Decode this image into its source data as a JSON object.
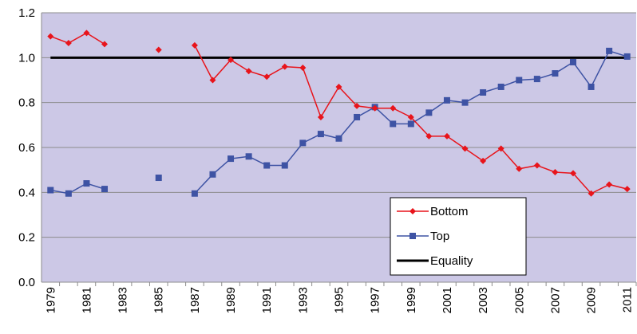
{
  "chart_data": {
    "type": "line",
    "categories": [
      "1979",
      null,
      "1981",
      null,
      "1983",
      null,
      "1985",
      null,
      "1987",
      null,
      "1989",
      null,
      "1991",
      null,
      "1993",
      null,
      "1995",
      null,
      "1997",
      null,
      "1999",
      null,
      "2001",
      null,
      "2003",
      null,
      "2005",
      null,
      "2007",
      null,
      "2009",
      null,
      "2011"
    ],
    "series": [
      {
        "name": "Bottom",
        "color": "#e8141b",
        "marker": "diamond",
        "values": [
          1.095,
          1.065,
          1.11,
          1.06,
          null,
          null,
          1.035,
          null,
          1.055,
          0.9,
          0.99,
          0.94,
          0.915,
          0.96,
          0.955,
          0.735,
          0.87,
          0.785,
          0.775,
          0.775,
          0.735,
          0.65,
          0.65,
          0.595,
          0.54,
          0.595,
          0.505,
          0.52,
          0.49,
          0.485,
          0.395,
          0.435,
          0.415
        ]
      },
      {
        "name": "Top",
        "color": "#3e53a4",
        "marker": "square",
        "values": [
          0.41,
          0.395,
          0.44,
          0.415,
          null,
          null,
          0.465,
          null,
          0.395,
          0.48,
          0.55,
          0.56,
          0.52,
          0.52,
          0.62,
          0.66,
          0.64,
          0.735,
          0.78,
          0.705,
          0.705,
          0.755,
          0.81,
          0.8,
          0.845,
          0.87,
          0.9,
          0.905,
          0.93,
          0.98,
          0.87,
          1.03,
          1.005
        ]
      },
      {
        "name": "Equality",
        "color": "#000000",
        "values": [
          1,
          1,
          1,
          1,
          1,
          1,
          1,
          1,
          1,
          1,
          1,
          1,
          1,
          1,
          1,
          1,
          1,
          1,
          1,
          1,
          1,
          1,
          1,
          1,
          1,
          1,
          1,
          1,
          1,
          1,
          1,
          1,
          1
        ]
      }
    ],
    "ylim": [
      0,
      1.2
    ],
    "yticks": [
      {
        "value": 0,
        "label": "0.0"
      },
      0.2,
      0.4,
      0.6,
      0.8,
      {
        "value": 1,
        "label": "1.0"
      },
      1.2
    ],
    "grid": true,
    "legend": "lower right"
  }
}
